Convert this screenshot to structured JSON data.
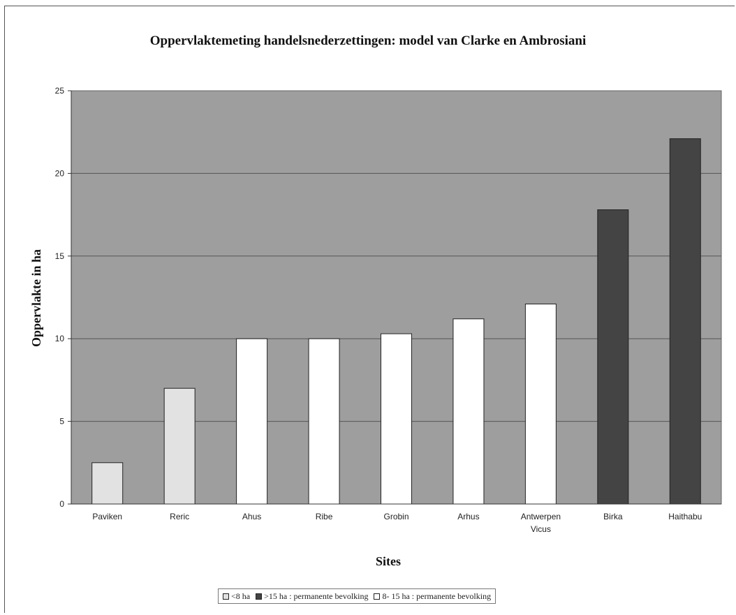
{
  "chart_data": {
    "type": "bar",
    "title": "Oppervlaktemeting handelsnederzettingen: model van Clarke en Ambrosiani",
    "xlabel": "Sites",
    "ylabel": "Oppervlakte in ha",
    "ylim": [
      0,
      25
    ],
    "yticks": [
      "0",
      "5",
      "10",
      "15",
      "20",
      "25"
    ],
    "grid": true,
    "legend_position": "bottom",
    "plot_background": "#9e9e9e",
    "categories": [
      "Paviken",
      "Reric",
      "Ahus",
      "Ribe",
      "Grobin",
      "Arhus",
      "Antwerpen Vicus",
      "Birka",
      "Haithabu"
    ],
    "category_lines": [
      [
        "Paviken"
      ],
      [
        "Reric"
      ],
      [
        "Ahus"
      ],
      [
        "Ribe"
      ],
      [
        "Grobin"
      ],
      [
        "Arhus"
      ],
      [
        "Antwerpen",
        "Vicus"
      ],
      [
        "Birka"
      ],
      [
        "Haithabu"
      ]
    ],
    "values": [
      2.5,
      7,
      10,
      10,
      10.3,
      11.2,
      12.1,
      17.8,
      22.1
    ],
    "groups": [
      0,
      0,
      2,
      2,
      2,
      2,
      2,
      1,
      1
    ],
    "legend": [
      {
        "label": "<8 ha",
        "color": "#e2e2e2"
      },
      {
        "label": ">15 ha : permanente bevolking",
        "color": "#444444"
      },
      {
        "label": "8- 15 ha : permanente bevolking",
        "color": "#ffffff"
      }
    ]
  }
}
